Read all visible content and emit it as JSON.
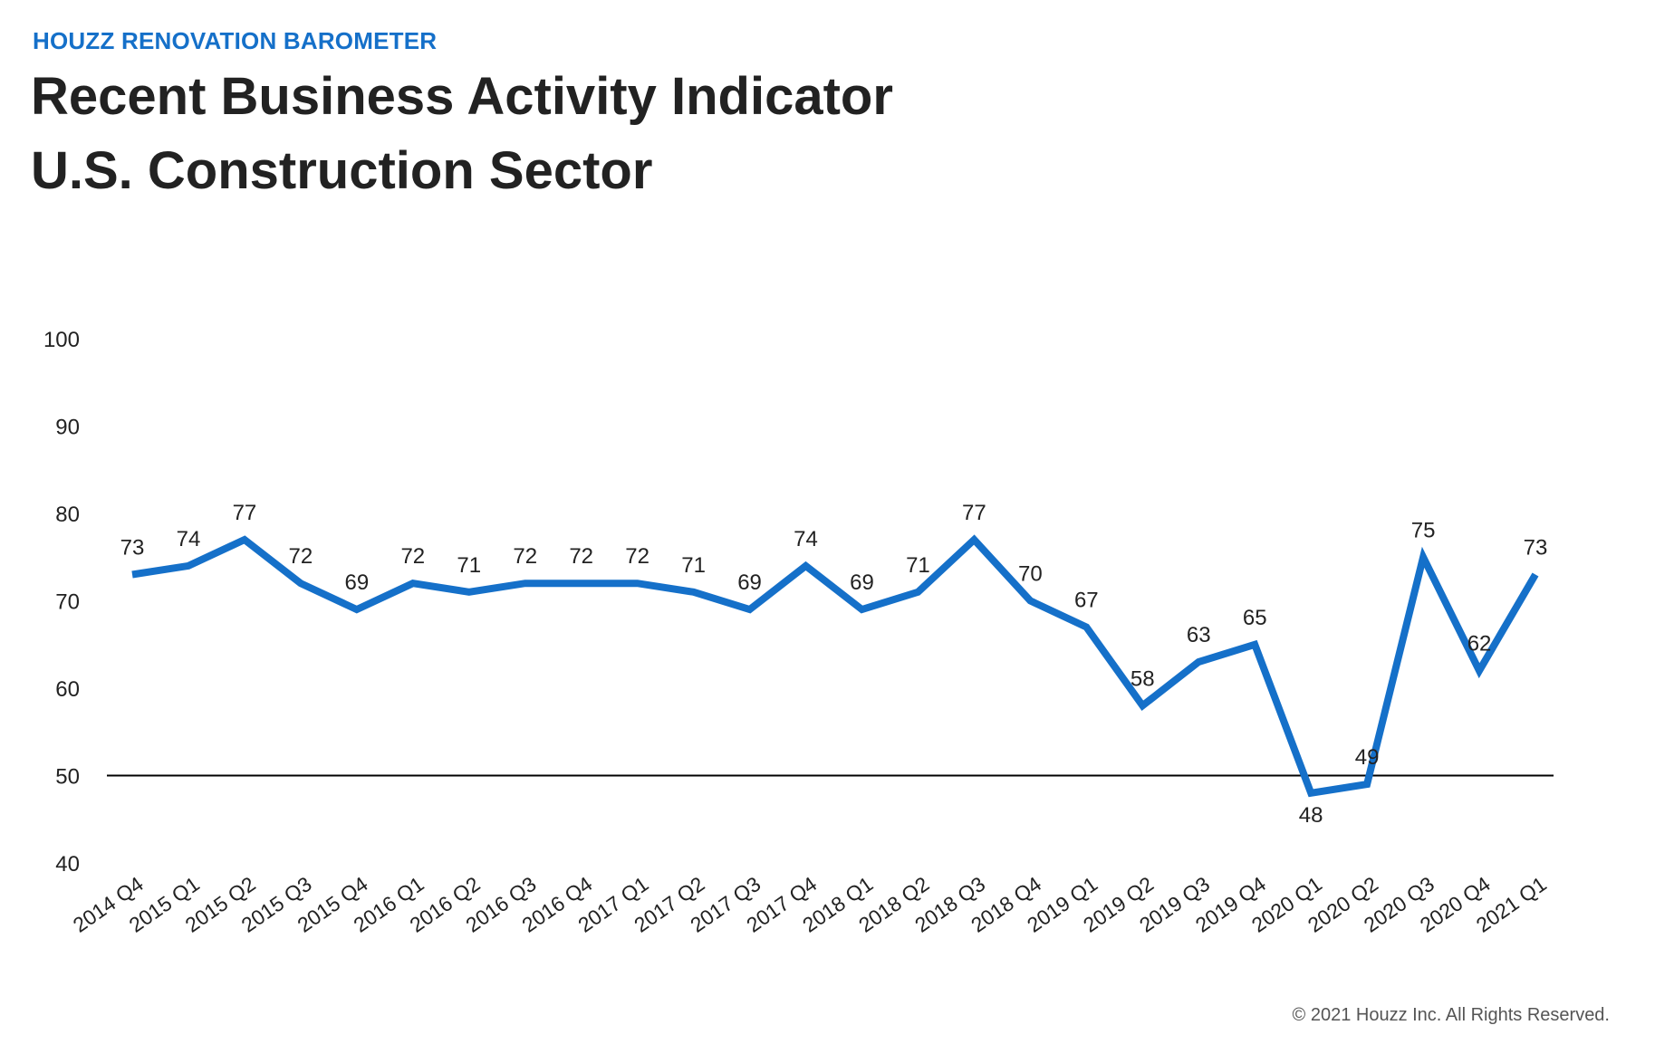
{
  "header": {
    "eyebrow": "HOUZZ RENOVATION BAROMETER",
    "title_line1": "Recent Business Activity Indicator",
    "title_line2": "U.S. Construction Sector"
  },
  "footer": {
    "copyright": "© 2021 Houzz Inc. All Rights Reserved."
  },
  "colors": {
    "accent": "#1570c9",
    "line": "#1570c9",
    "reference_line": "#000000",
    "text": "#222222"
  },
  "chart_data": {
    "type": "line",
    "title": "Recent Business Activity Indicator U.S. Construction Sector",
    "xlabel": "",
    "ylabel": "",
    "ylim": [
      40,
      100
    ],
    "yticks": [
      40,
      50,
      60,
      70,
      80,
      90,
      100
    ],
    "reference_line": 50,
    "grid": false,
    "categories": [
      "2014 Q4",
      "2015 Q1",
      "2015 Q2",
      "2015 Q3",
      "2015 Q4",
      "2016 Q1",
      "2016 Q2",
      "2016 Q3",
      "2016 Q4",
      "2017 Q1",
      "2017 Q2",
      "2017 Q3",
      "2017 Q4",
      "2018 Q1",
      "2018 Q2",
      "2018 Q3",
      "2018 Q4",
      "2019 Q1",
      "2019 Q2",
      "2019 Q3",
      "2019 Q4",
      "2020 Q1",
      "2020 Q2",
      "2020 Q3",
      "2020 Q4",
      "2021 Q1"
    ],
    "series": [
      {
        "name": "Recent Business Activity Indicator",
        "values": [
          73,
          74,
          77,
          72,
          69,
          72,
          71,
          72,
          72,
          72,
          71,
          69,
          74,
          69,
          71,
          77,
          70,
          67,
          58,
          63,
          65,
          48,
          49,
          75,
          62,
          73
        ],
        "labels": [
          "73",
          "74",
          "77",
          "72",
          "69",
          "72",
          "71",
          "72",
          "72",
          "72",
          "71",
          "69",
          "74",
          "69",
          "71",
          "77",
          "70",
          "67",
          "58",
          "63",
          "65",
          "48",
          "49",
          "75",
          "62",
          "73"
        ]
      }
    ]
  }
}
